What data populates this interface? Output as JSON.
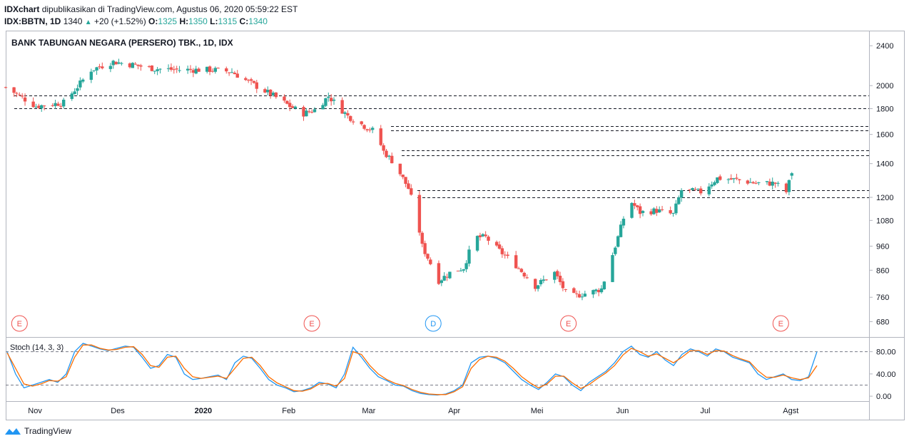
{
  "header": {
    "brand": "IDXchart",
    "published": "dipublikasikan di TradingView.com, Agustus 06, 2020 05:59:22 EST",
    "symbol": "IDX:BBTN, 1D",
    "last": "1340",
    "change": "+20 (+1.52%)",
    "o_label": "O:",
    "o": "1325",
    "h_label": "H:",
    "h": "1350",
    "l_label": "L:",
    "l": "1315",
    "c_label": "C:",
    "c": "1340"
  },
  "footer": {
    "brand": "TradingView"
  },
  "colors": {
    "up": "#26a69a",
    "down": "#ef5350",
    "stoch_k": "#2196f3",
    "stoch_d": "#ff6d00",
    "event_e": "#ef5350",
    "event_d": "#2196f3"
  },
  "chart_data": [
    {
      "type": "candlestick",
      "title": "BANK TABUNGAN NEGARA (PERSERO) TBK., 1D, IDX",
      "scale": "log",
      "ylim": [
        640,
        2530
      ],
      "y_ticks": [
        "2400",
        "2000",
        "1800",
        "1600",
        "1400",
        "1200",
        "1080",
        "960",
        "860",
        "760",
        "680"
      ],
      "x_ticks": [
        "Nov",
        "Des",
        "2020",
        "Feb",
        "Mar",
        "Apr",
        "Mei",
        "Jun",
        "Jul",
        "Agst"
      ],
      "horizontal_levels": [
        1910,
        1805,
        1660,
        1630,
        1490,
        1455,
        1240,
        1200
      ],
      "events": [
        {
          "label": "E",
          "date": "Oct 30"
        },
        {
          "label": "E",
          "date": "Feb 13"
        },
        {
          "label": "D",
          "date": "Mar 28"
        },
        {
          "label": "E",
          "date": "May 16"
        },
        {
          "label": "E",
          "date": "Aug 01"
        }
      ],
      "close_path": [
        [
          "2019-10-25",
          1985
        ],
        [
          "2019-11-05",
          1820
        ],
        [
          "2019-11-15",
          1850
        ],
        [
          "2019-11-20",
          1990
        ],
        [
          "2019-11-25",
          2150
        ],
        [
          "2019-12-03",
          2230
        ],
        [
          "2019-12-10",
          2200
        ],
        [
          "2019-12-18",
          2160
        ],
        [
          "2019-12-27",
          2150
        ],
        [
          "2020-01-08",
          2150
        ],
        [
          "2020-01-15",
          2130
        ],
        [
          "2020-01-20",
          2050
        ],
        [
          "2020-01-30",
          1910
        ],
        [
          "2020-02-05",
          1820
        ],
        [
          "2020-02-10",
          1760
        ],
        [
          "2020-02-14",
          1790
        ],
        [
          "2020-02-19",
          1905
        ],
        [
          "2020-02-26",
          1740
        ],
        [
          "2020-03-04",
          1650
        ],
        [
          "2020-03-07",
          1620
        ],
        [
          "2020-03-10",
          1480
        ],
        [
          "2020-03-14",
          1400
        ],
        [
          "2020-03-19",
          1250
        ],
        [
          "2020-03-22",
          1100
        ],
        [
          "2020-03-24",
          960
        ],
        [
          "2020-03-30",
          820
        ],
        [
          "2020-04-03",
          850
        ],
        [
          "2020-04-08",
          870
        ],
        [
          "2020-04-12",
          1000
        ],
        [
          "2020-04-16",
          1000
        ],
        [
          "2020-04-20",
          950
        ],
        [
          "2020-04-27",
          880
        ],
        [
          "2020-05-04",
          800
        ],
        [
          "2020-05-11",
          850
        ],
        [
          "2020-05-16",
          760
        ],
        [
          "2020-05-25",
          780
        ],
        [
          "2020-05-28",
          790
        ],
        [
          "2020-06-03",
          1000
        ],
        [
          "2020-06-07",
          1190
        ],
        [
          "2020-06-11",
          1120
        ],
        [
          "2020-06-17",
          1130
        ],
        [
          "2020-06-23",
          1110
        ],
        [
          "2020-06-26",
          1240
        ],
        [
          "2020-07-03",
          1230
        ],
        [
          "2020-07-09",
          1310
        ],
        [
          "2020-07-16",
          1300
        ],
        [
          "2020-07-23",
          1280
        ],
        [
          "2020-07-30",
          1280
        ],
        [
          "2020-08-03",
          1230
        ],
        [
          "2020-08-05",
          1340
        ]
      ],
      "last": {
        "open": 1325,
        "high": 1350,
        "low": 1315,
        "close": 1340
      }
    },
    {
      "type": "line",
      "title": "Stoch (14, 3, 3)",
      "ylim": [
        -5,
        100
      ],
      "y_ticks": [
        "80.00",
        "40.00",
        "0.00"
      ],
      "bands": [
        80,
        20
      ],
      "series": [
        {
          "color": "#2196f3",
          "values": [
            80,
            40,
            15,
            20,
            25,
            30,
            25,
            40,
            80,
            95,
            90,
            85,
            82,
            86,
            90,
            88,
            70,
            50,
            55,
            75,
            70,
            40,
            30,
            32,
            35,
            38,
            30,
            60,
            72,
            68,
            50,
            30,
            20,
            15,
            8,
            10,
            15,
            25,
            22,
            15,
            40,
            88,
            70,
            50,
            35,
            28,
            20,
            18,
            10,
            5,
            3,
            2,
            4,
            10,
            20,
            60,
            70,
            72,
            68,
            60,
            45,
            30,
            20,
            12,
            25,
            40,
            35,
            20,
            10,
            25,
            35,
            45,
            60,
            80,
            90,
            75,
            70,
            80,
            65,
            55,
            75,
            85,
            80,
            72,
            85,
            80,
            70,
            65,
            60,
            40,
            30,
            35,
            40,
            30,
            28,
            35,
            80
          ]
        },
        {
          "color": "#ff6d00",
          "values": [
            78,
            50,
            22,
            18,
            22,
            28,
            27,
            35,
            70,
            92,
            92,
            86,
            83,
            84,
            88,
            89,
            75,
            55,
            52,
            70,
            72,
            50,
            35,
            32,
            34,
            36,
            32,
            50,
            68,
            70,
            55,
            35,
            24,
            17,
            10,
            9,
            13,
            22,
            23,
            18,
            32,
            80,
            75,
            55,
            40,
            30,
            23,
            19,
            12,
            7,
            4,
            3,
            3,
            8,
            17,
            50,
            66,
            72,
            70,
            63,
            50,
            35,
            24,
            15,
            22,
            36,
            36,
            24,
            14,
            21,
            32,
            42,
            55,
            74,
            86,
            80,
            72,
            76,
            68,
            60,
            70,
            82,
            82,
            75,
            82,
            81,
            73,
            67,
            62,
            46,
            34,
            34,
            38,
            33,
            30,
            33,
            55
          ]
        }
      ]
    }
  ]
}
